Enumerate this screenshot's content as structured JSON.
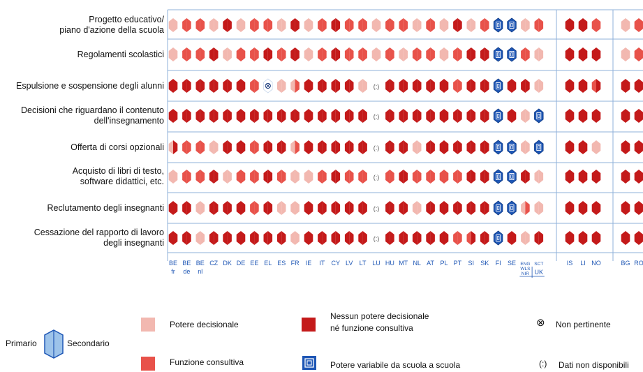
{
  "chart_data": {
    "type": "heatmap",
    "rows": [
      "Progetto educativo/ piano d'azione della scuola",
      "Regolamenti scolastici",
      "Espulsione e sospensione degli alunni",
      "Decisioni che riguardano il contenuto dell'insegnamento",
      "Offerta di corsi opzionali",
      "Acquisto di libri di testo, software didattici, etc.",
      "Reclutamento degli insegnanti",
      "Cessazione del rapporto di lavoro degli insegnanti"
    ],
    "row_label_lines": [
      [
        "Progetto educativo/",
        "piano d'azione della scuola"
      ],
      [
        "Regolamenti scolastici"
      ],
      [
        "Espulsione e sospensione degli alunni"
      ],
      [
        "Decisioni che riguardano il contenuto",
        "dell'insegnamento"
      ],
      [
        "Offerta di corsi opzionali"
      ],
      [
        "Acquisto di libri di testo,",
        "software didattici, etc."
      ],
      [
        "Reclutamento degli insegnanti"
      ],
      [
        "Cessazione del rapporto di lavoro",
        "degli insegnanti"
      ]
    ],
    "columns": [
      {
        "code": "BE",
        "sub": "fr"
      },
      {
        "code": "BE",
        "sub": "de"
      },
      {
        "code": "BE",
        "sub": "nl"
      },
      {
        "code": "CZ"
      },
      {
        "code": "DK"
      },
      {
        "code": "DE"
      },
      {
        "code": "EE"
      },
      {
        "code": "EL"
      },
      {
        "code": "ES"
      },
      {
        "code": "FR"
      },
      {
        "code": "IE"
      },
      {
        "code": "IT"
      },
      {
        "code": "CY"
      },
      {
        "code": "LV"
      },
      {
        "code": "LT"
      },
      {
        "code": "LU"
      },
      {
        "code": "HU"
      },
      {
        "code": "MT"
      },
      {
        "code": "NL"
      },
      {
        "code": "AT"
      },
      {
        "code": "PL"
      },
      {
        "code": "PT"
      },
      {
        "code": "SI"
      },
      {
        "code": "SK"
      },
      {
        "code": "FI"
      },
      {
        "code": "SE"
      },
      {
        "code": "ENG",
        "sub": "WLS",
        "sub2": "NIR",
        "group": "UK"
      },
      {
        "code": "SCT",
        "group": "UK"
      },
      {
        "code": "IS"
      },
      {
        "code": "LI"
      },
      {
        "code": "NO"
      },
      {
        "code": "BG"
      },
      {
        "code": "RO"
      }
    ],
    "uk_label": "UK",
    "legend_codes": {
      "P": "Potere decisionale",
      "C": "Funzione consultiva",
      "N": "Nessun potere decisionale né funzione consultiva",
      "V": "Potere variabile da scuola a scuola",
      "X": "Non pertinente",
      "D": "Dati non disponibili"
    },
    "values": [
      [
        [
          "P",
          "P"
        ],
        [
          "C",
          "C"
        ],
        [
          "C",
          "C"
        ],
        [
          "P",
          "P"
        ],
        [
          "N",
          "N"
        ],
        [
          "P",
          "P"
        ],
        [
          "C",
          "C"
        ],
        [
          "C",
          "C"
        ],
        [
          "P",
          "P"
        ],
        [
          "N",
          "N"
        ],
        [
          "P",
          "P"
        ],
        [
          "C",
          "C"
        ],
        [
          "N",
          "N"
        ],
        [
          "C",
          "C"
        ],
        [
          "C",
          "C"
        ],
        [
          "P",
          "P"
        ],
        [
          "C",
          "C"
        ],
        [
          "C",
          "C"
        ],
        [
          "P",
          "P"
        ],
        [
          "C",
          "C"
        ],
        [
          "P",
          "P"
        ],
        [
          "N",
          "N"
        ],
        [
          "P",
          "P"
        ],
        [
          "C",
          "C"
        ],
        [
          "V",
          "V"
        ],
        [
          "V",
          "V"
        ],
        [
          "P",
          "P"
        ],
        [
          "C",
          "C"
        ],
        [
          "N",
          "N"
        ],
        [
          "N",
          "N"
        ],
        [
          "C",
          "C"
        ],
        [
          "P",
          "P"
        ],
        [
          "C",
          "C"
        ]
      ],
      [
        [
          "P",
          "P"
        ],
        [
          "C",
          "C"
        ],
        [
          "C",
          "C"
        ],
        [
          "N",
          "N"
        ],
        [
          "P",
          "P"
        ],
        [
          "C",
          "C"
        ],
        [
          "C",
          "C"
        ],
        [
          "N",
          "N"
        ],
        [
          "C",
          "C"
        ],
        [
          "N",
          "N"
        ],
        [
          "P",
          "P"
        ],
        [
          "C",
          "C"
        ],
        [
          "N",
          "N"
        ],
        [
          "C",
          "C"
        ],
        [
          "C",
          "C"
        ],
        [
          "P",
          "P"
        ],
        [
          "C",
          "C"
        ],
        [
          "P",
          "P"
        ],
        [
          "C",
          "C"
        ],
        [
          "C",
          "C"
        ],
        [
          "P",
          "P"
        ],
        [
          "C",
          "C"
        ],
        [
          "N",
          "N"
        ],
        [
          "N",
          "N"
        ],
        [
          "V",
          "V"
        ],
        [
          "V",
          "V"
        ],
        [
          "C",
          "C"
        ],
        [
          "P",
          "P"
        ],
        [
          "N",
          "N"
        ],
        [
          "N",
          "N"
        ],
        [
          "N",
          "N"
        ],
        [
          "P",
          "P"
        ],
        [
          "C",
          "C"
        ]
      ],
      [
        [
          "N",
          "N"
        ],
        [
          "N",
          "N"
        ],
        [
          "N",
          "N"
        ],
        [
          "N",
          "N"
        ],
        [
          "N",
          "N"
        ],
        [
          "N",
          "N"
        ],
        [
          "C",
          "C"
        ],
        [
          "X",
          "X"
        ],
        [
          "P",
          "P"
        ],
        [
          "P",
          "C"
        ],
        [
          "N",
          "N"
        ],
        [
          "N",
          "N"
        ],
        [
          "N",
          "N"
        ],
        [
          "N",
          "N"
        ],
        [
          "P",
          "P"
        ],
        [
          "D",
          "D"
        ],
        [
          "N",
          "N"
        ],
        [
          "N",
          "N"
        ],
        [
          "N",
          "N"
        ],
        [
          "N",
          "N"
        ],
        [
          "N",
          "N"
        ],
        [
          "C",
          "C"
        ],
        [
          "N",
          "N"
        ],
        [
          "N",
          "N"
        ],
        [
          "V",
          "V"
        ],
        [
          "N",
          "N"
        ],
        [
          "N",
          "N"
        ],
        [
          "P",
          "P"
        ],
        [
          "N",
          "N"
        ],
        [
          "N",
          "N"
        ],
        [
          "C",
          "N"
        ],
        [
          "N",
          "N"
        ],
        [
          "N",
          "N"
        ]
      ],
      [
        [
          "N",
          "N"
        ],
        [
          "N",
          "N"
        ],
        [
          "N",
          "N"
        ],
        [
          "N",
          "N"
        ],
        [
          "N",
          "N"
        ],
        [
          "N",
          "N"
        ],
        [
          "N",
          "N"
        ],
        [
          "N",
          "N"
        ],
        [
          "N",
          "N"
        ],
        [
          "N",
          "N"
        ],
        [
          "N",
          "N"
        ],
        [
          "N",
          "N"
        ],
        [
          "N",
          "N"
        ],
        [
          "N",
          "N"
        ],
        [
          "N",
          "N"
        ],
        [
          "D",
          "D"
        ],
        [
          "N",
          "N"
        ],
        [
          "N",
          "N"
        ],
        [
          "N",
          "N"
        ],
        [
          "N",
          "N"
        ],
        [
          "N",
          "N"
        ],
        [
          "N",
          "N"
        ],
        [
          "N",
          "N"
        ],
        [
          "N",
          "N"
        ],
        [
          "V",
          "V"
        ],
        [
          "N",
          "N"
        ],
        [
          "P",
          "P"
        ],
        [
          "V",
          "V"
        ],
        [
          "N",
          "N"
        ],
        [
          "N",
          "N"
        ],
        [
          "N",
          "N"
        ],
        [
          "N",
          "N"
        ],
        [
          "N",
          "N"
        ]
      ],
      [
        [
          "P",
          "N"
        ],
        [
          "C",
          "C"
        ],
        [
          "C",
          "C"
        ],
        [
          "P",
          "P"
        ],
        [
          "N",
          "N"
        ],
        [
          "N",
          "N"
        ],
        [
          "C",
          "C"
        ],
        [
          "N",
          "N"
        ],
        [
          "N",
          "N"
        ],
        [
          "P",
          "C"
        ],
        [
          "N",
          "N"
        ],
        [
          "N",
          "N"
        ],
        [
          "N",
          "N"
        ],
        [
          "N",
          "N"
        ],
        [
          "N",
          "N"
        ],
        [
          "D",
          "D"
        ],
        [
          "N",
          "N"
        ],
        [
          "N",
          "N"
        ],
        [
          "P",
          "P"
        ],
        [
          "N",
          "N"
        ],
        [
          "N",
          "N"
        ],
        [
          "N",
          "N"
        ],
        [
          "N",
          "N"
        ],
        [
          "N",
          "N"
        ],
        [
          "V",
          "V"
        ],
        [
          "V",
          "V"
        ],
        [
          "P",
          "P"
        ],
        [
          "V",
          "V"
        ],
        [
          "N",
          "N"
        ],
        [
          "N",
          "N"
        ],
        [
          "P",
          "P"
        ],
        [
          "N",
          "N"
        ],
        [
          "N",
          "N"
        ]
      ],
      [
        [
          "P",
          "P"
        ],
        [
          "C",
          "C"
        ],
        [
          "C",
          "C"
        ],
        [
          "N",
          "N"
        ],
        [
          "P",
          "P"
        ],
        [
          "C",
          "C"
        ],
        [
          "C",
          "C"
        ],
        [
          "N",
          "N"
        ],
        [
          "C",
          "C"
        ],
        [
          "P",
          "P"
        ],
        [
          "P",
          "P"
        ],
        [
          "C",
          "C"
        ],
        [
          "N",
          "N"
        ],
        [
          "C",
          "C"
        ],
        [
          "C",
          "C"
        ],
        [
          "D",
          "D"
        ],
        [
          "C",
          "C"
        ],
        [
          "N",
          "N"
        ],
        [
          "C",
          "C"
        ],
        [
          "C",
          "C"
        ],
        [
          "C",
          "C"
        ],
        [
          "C",
          "C"
        ],
        [
          "N",
          "N"
        ],
        [
          "N",
          "N"
        ],
        [
          "V",
          "V"
        ],
        [
          "V",
          "V"
        ],
        [
          "N",
          "N"
        ],
        [
          "P",
          "P"
        ],
        [
          "N",
          "N"
        ],
        [
          "N",
          "N"
        ],
        [
          "N",
          "N"
        ],
        [
          "N",
          "N"
        ],
        [
          "N",
          "N"
        ]
      ],
      [
        [
          "N",
          "N"
        ],
        [
          "N",
          "N"
        ],
        [
          "P",
          "P"
        ],
        [
          "N",
          "N"
        ],
        [
          "N",
          "N"
        ],
        [
          "N",
          "N"
        ],
        [
          "C",
          "C"
        ],
        [
          "N",
          "N"
        ],
        [
          "P",
          "P"
        ],
        [
          "P",
          "P"
        ],
        [
          "N",
          "N"
        ],
        [
          "N",
          "N"
        ],
        [
          "N",
          "N"
        ],
        [
          "N",
          "N"
        ],
        [
          "N",
          "N"
        ],
        [
          "D",
          "D"
        ],
        [
          "N",
          "N"
        ],
        [
          "N",
          "N"
        ],
        [
          "P",
          "P"
        ],
        [
          "N",
          "N"
        ],
        [
          "N",
          "N"
        ],
        [
          "N",
          "N"
        ],
        [
          "N",
          "N"
        ],
        [
          "N",
          "N"
        ],
        [
          "V",
          "V"
        ],
        [
          "V",
          "V"
        ],
        [
          "P",
          "C"
        ],
        [
          "P",
          "P"
        ],
        [
          "N",
          "N"
        ],
        [
          "N",
          "N"
        ],
        [
          "N",
          "N"
        ],
        [
          "N",
          "N"
        ],
        [
          "N",
          "N"
        ]
      ],
      [
        [
          "N",
          "N"
        ],
        [
          "N",
          "N"
        ],
        [
          "P",
          "P"
        ],
        [
          "N",
          "N"
        ],
        [
          "N",
          "N"
        ],
        [
          "N",
          "N"
        ],
        [
          "N",
          "N"
        ],
        [
          "N",
          "N"
        ],
        [
          "N",
          "N"
        ],
        [
          "P",
          "P"
        ],
        [
          "N",
          "N"
        ],
        [
          "N",
          "N"
        ],
        [
          "N",
          "N"
        ],
        [
          "N",
          "N"
        ],
        [
          "N",
          "N"
        ],
        [
          "D",
          "D"
        ],
        [
          "N",
          "N"
        ],
        [
          "N",
          "N"
        ],
        [
          "N",
          "N"
        ],
        [
          "N",
          "N"
        ],
        [
          "N",
          "N"
        ],
        [
          "C",
          "C"
        ],
        [
          "C",
          "N"
        ],
        [
          "N",
          "N"
        ],
        [
          "V",
          "V"
        ],
        [
          "N",
          "N"
        ],
        [
          "P",
          "P"
        ],
        [
          "N",
          "N"
        ],
        [
          "N",
          "N"
        ],
        [
          "N",
          "N"
        ],
        [
          "N",
          "N"
        ],
        [
          "N",
          "N"
        ],
        [
          "N",
          "N"
        ]
      ]
    ]
  },
  "colors": {
    "potere_decisionale": "#f2b8b0",
    "funzione_consultiva": "#e8524a",
    "nessun_potere": "#c41a1a",
    "variabile": "#1f57b5",
    "grid": "#8fb1da",
    "legend_hex": "#9dc3ea"
  },
  "legend": {
    "primario": "Primario",
    "secondario": "Secondario",
    "potere_decisionale": "Potere decisionale",
    "funzione_consultiva": "Funzione consultiva",
    "nessun_potere_line1": "Nessun potere decisionale",
    "nessun_potere_line2": "né funzione consultiva",
    "variabile": "Potere variabile da scuola a scuola",
    "non_pertinente": "Non pertinente",
    "non_pertinente_symbol": "⊗",
    "dati_non_disponibili": "Dati non disponibili",
    "dati_symbol": "(:)"
  }
}
